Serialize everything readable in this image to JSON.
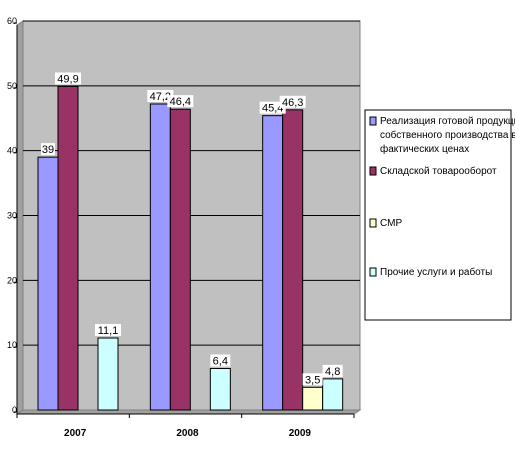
{
  "chart_data": {
    "type": "bar",
    "title": "",
    "xlabel": "",
    "ylabel": "",
    "categories": [
      "2007",
      "2008",
      "2009"
    ],
    "ylim": [
      0,
      60
    ],
    "yticks": [
      0,
      10,
      20,
      30,
      40,
      50,
      60
    ],
    "grid": true,
    "legend_position": "right",
    "plot_background": "#c0c0c0",
    "series": [
      {
        "name": "Реализация готовой продукции собственного производства в фактических ценах",
        "color": "#9999ff",
        "values": [
          39,
          47.2,
          45.4
        ],
        "labels": [
          "39",
          "47,2",
          "45,4"
        ]
      },
      {
        "name": "Складской товарооборот",
        "color": "#993366",
        "values": [
          49.9,
          46.4,
          46.3
        ],
        "labels": [
          "49,9",
          "46,4",
          "46,3"
        ]
      },
      {
        "name": "СМР",
        "color": "#ffffcc",
        "values": [
          null,
          null,
          3.5
        ],
        "labels": [
          "",
          "",
          "3,5"
        ]
      },
      {
        "name": "Прочие услуги и работы",
        "color": "#ccffff",
        "values": [
          11.1,
          6.4,
          4.8
        ],
        "labels": [
          "11,1",
          "6,4",
          "4,8"
        ]
      }
    ]
  }
}
